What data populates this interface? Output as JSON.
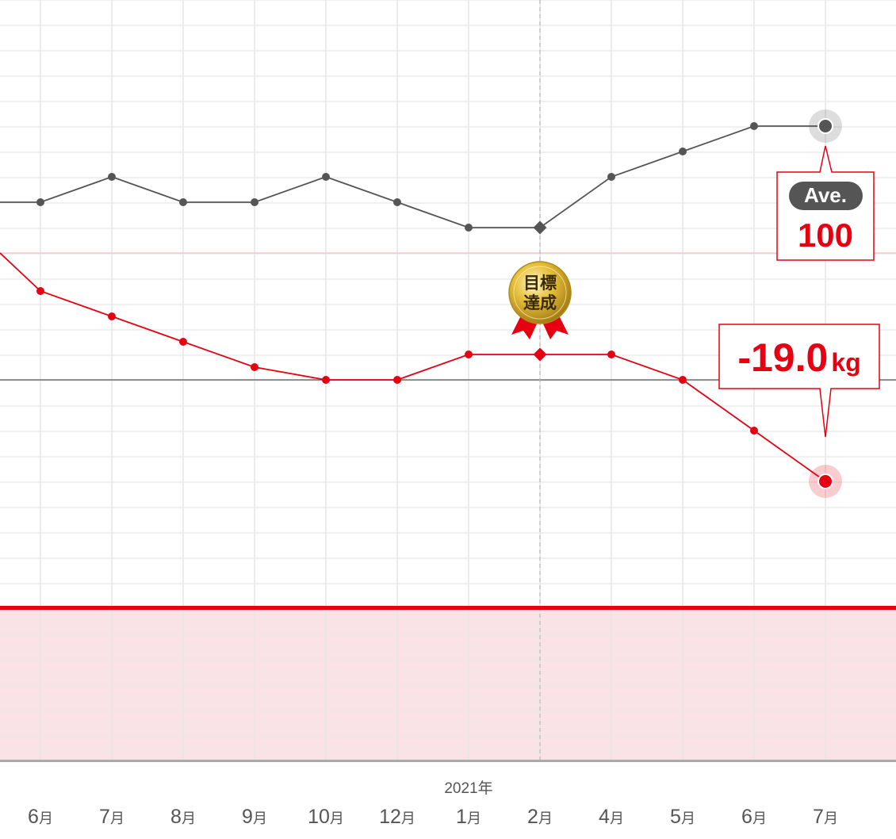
{
  "chart_data": {
    "type": "line",
    "year_label": "2021年",
    "categories": [
      "6月",
      "7月",
      "8月",
      "9月",
      "10月",
      "12月",
      "1月",
      "2月",
      "4月",
      "5月",
      "6月",
      "7月"
    ],
    "series": [
      {
        "color": "#555555",
        "values": [
          100,
          101,
          100,
          100,
          101,
          100,
          99,
          99,
          101,
          102,
          103,
          103
        ]
      },
      {
        "color": "#e60012",
        "values": [
          -15.0,
          -16.0,
          -17.0,
          -18.0,
          -18.5,
          -18.5,
          -17.5,
          -17.5,
          -17.5,
          -18.5,
          -20.5,
          -22.5
        ]
      }
    ],
    "goal_index": 7,
    "goal_badge": {
      "line1": "目標",
      "line2": "達成"
    },
    "avg_callout": {
      "tag": "Ave.",
      "value": "100"
    },
    "weight_callout": {
      "value": "-19.0",
      "unit": "kg"
    },
    "grid": true,
    "colors": {
      "accent": "#e60012",
      "dark": "#555555",
      "zone": "#fae3e6"
    }
  }
}
